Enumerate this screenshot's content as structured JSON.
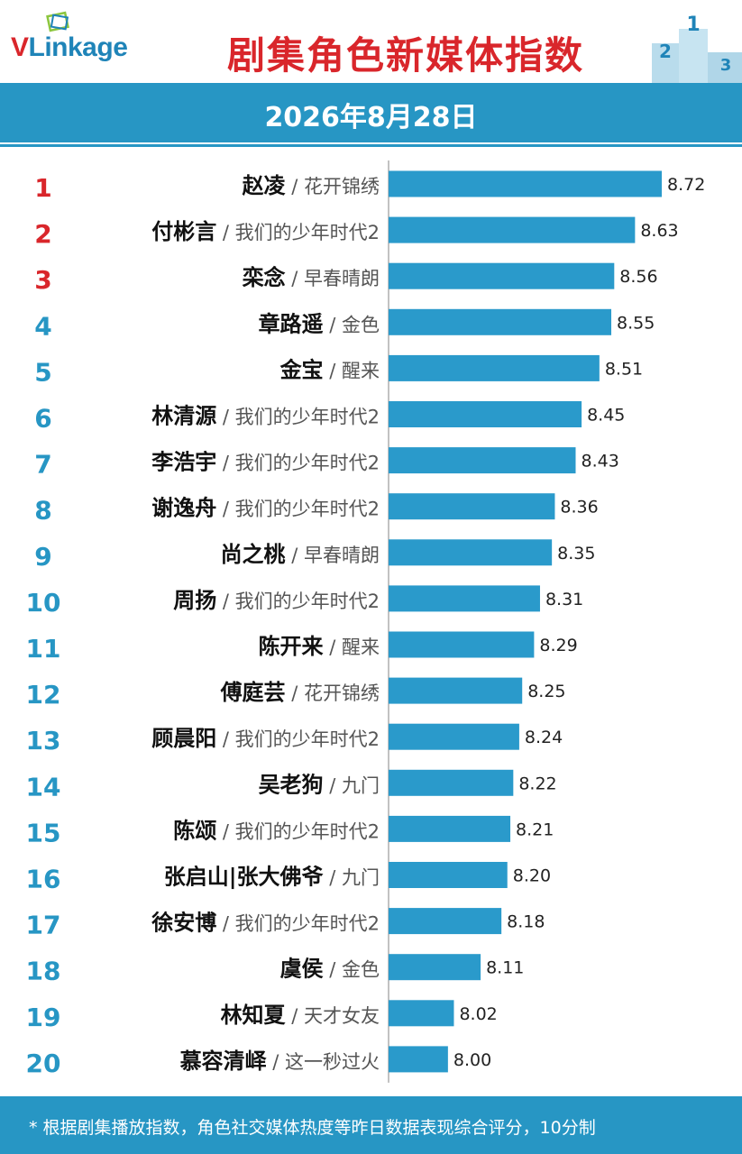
{
  "header": {
    "logo_part1": "V",
    "logo_part2": "Linkage",
    "title": "剧集角色新媒体指数",
    "date": "2026年8月28日"
  },
  "footer": {
    "note": "* 根据剧集播放指数，角色社交媒体热度等昨日数据表现综合评分，10分制"
  },
  "colors": {
    "bar": "#2a9acb",
    "rank_top3": "#d9262b",
    "rank_other": "#2796c4",
    "band": "#2796c4"
  },
  "chart_data": {
    "type": "bar",
    "orientation": "horizontal",
    "title": "剧集角色新媒体指数",
    "categories": [
      {
        "rank": "1",
        "name": "赵凌",
        "drama": "花开锦绣"
      },
      {
        "rank": "2",
        "name": "付彬言",
        "drama": "我们的少年时代2"
      },
      {
        "rank": "3",
        "name": "栾念",
        "drama": "早春晴朗"
      },
      {
        "rank": "4",
        "name": "章路遥",
        "drama": "金色"
      },
      {
        "rank": "5",
        "name": "金宝",
        "drama": "醒来"
      },
      {
        "rank": "6",
        "name": "林清源",
        "drama": "我们的少年时代2"
      },
      {
        "rank": "7",
        "name": "李浩宇",
        "drama": "我们的少年时代2"
      },
      {
        "rank": "8",
        "name": "谢逸舟",
        "drama": "我们的少年时代2"
      },
      {
        "rank": "9",
        "name": "尚之桃",
        "drama": "早春晴朗"
      },
      {
        "rank": "10",
        "name": "周扬",
        "drama": "我们的少年时代2"
      },
      {
        "rank": "11",
        "name": "陈开来",
        "drama": "醒来"
      },
      {
        "rank": "12",
        "name": "傅庭芸",
        "drama": "花开锦绣"
      },
      {
        "rank": "13",
        "name": "顾晨阳",
        "drama": "我们的少年时代2"
      },
      {
        "rank": "14",
        "name": "吴老狗",
        "drama": "九门"
      },
      {
        "rank": "15",
        "name": "陈颂",
        "drama": "我们的少年时代2"
      },
      {
        "rank": "16",
        "name": "张启山|张大佛爷",
        "drama": "九门"
      },
      {
        "rank": "17",
        "name": "徐安博",
        "drama": "我们的少年时代2"
      },
      {
        "rank": "18",
        "name": "虞侯",
        "drama": "金色"
      },
      {
        "rank": "19",
        "name": "林知夏",
        "drama": "天才女友"
      },
      {
        "rank": "20",
        "name": "慕容清峄",
        "drama": "这一秒过火"
      }
    ],
    "values": [
      8.72,
      8.63,
      8.56,
      8.55,
      8.51,
      8.45,
      8.43,
      8.36,
      8.35,
      8.31,
      8.29,
      8.25,
      8.24,
      8.22,
      8.21,
      8.2,
      8.18,
      8.11,
      8.02,
      8.0
    ],
    "value_labels": [
      "8.72",
      "8.63",
      "8.56",
      "8.55",
      "8.51",
      "8.45",
      "8.43",
      "8.36",
      "8.35",
      "8.31",
      "8.29",
      "8.25",
      "8.24",
      "8.22",
      "8.21",
      "8.20",
      "8.18",
      "8.11",
      "8.02",
      "8.00"
    ],
    "grid": false,
    "legend": "none"
  }
}
